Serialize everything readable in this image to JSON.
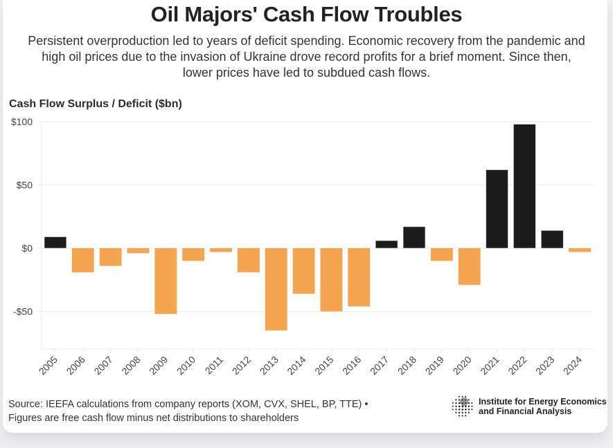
{
  "header": {
    "title": "Oil Majors' Cash Flow Troubles",
    "subtitle": "Persistent overproduction led to years of deficit spending. Economic recovery from the pandemic and high oil prices due to the invasion of Ukraine drove record profits for a brief moment. Since then, lower prices have led to subdued cash flows."
  },
  "footer": {
    "source_line1": "Source: IEEFA calculations from company reports (XOM, CVX, SHEL, BP, TTE) •",
    "source_line2": "Figures are free cash flow minus net distributions to shareholders",
    "logo_line1": "Institute for Energy Economics",
    "logo_line2": "and Financial Analysis",
    "logo_icon": "globe-icon"
  },
  "colors": {
    "surplus": "#1c1c1c",
    "deficit": "#f5a550",
    "grid": "#eeeeee"
  },
  "chart_data": {
    "type": "bar",
    "title": "Oil Majors' Cash Flow Troubles",
    "xlabel": "",
    "ylabel": "Cash Flow Surplus / Deficit ($bn)",
    "ylim": [
      -75,
      100
    ],
    "yticks": [
      100,
      50,
      0,
      -50
    ],
    "ytick_labels": [
      "$100",
      "$50",
      "$0",
      "-$50"
    ],
    "grid": true,
    "legend": "none",
    "categories": [
      "2005",
      "2006",
      "2007",
      "2008",
      "2009",
      "2010",
      "2011",
      "2012",
      "2013",
      "2014",
      "2015",
      "2016",
      "2017",
      "2018",
      "2019",
      "2020",
      "2021",
      "2022",
      "2023",
      "2024"
    ],
    "values": [
      9,
      -19,
      -14,
      -4,
      -52,
      -10,
      -3,
      -19,
      -65,
      -36,
      -50,
      -46,
      6,
      17,
      -10,
      -29,
      62,
      98,
      14,
      -3
    ]
  }
}
